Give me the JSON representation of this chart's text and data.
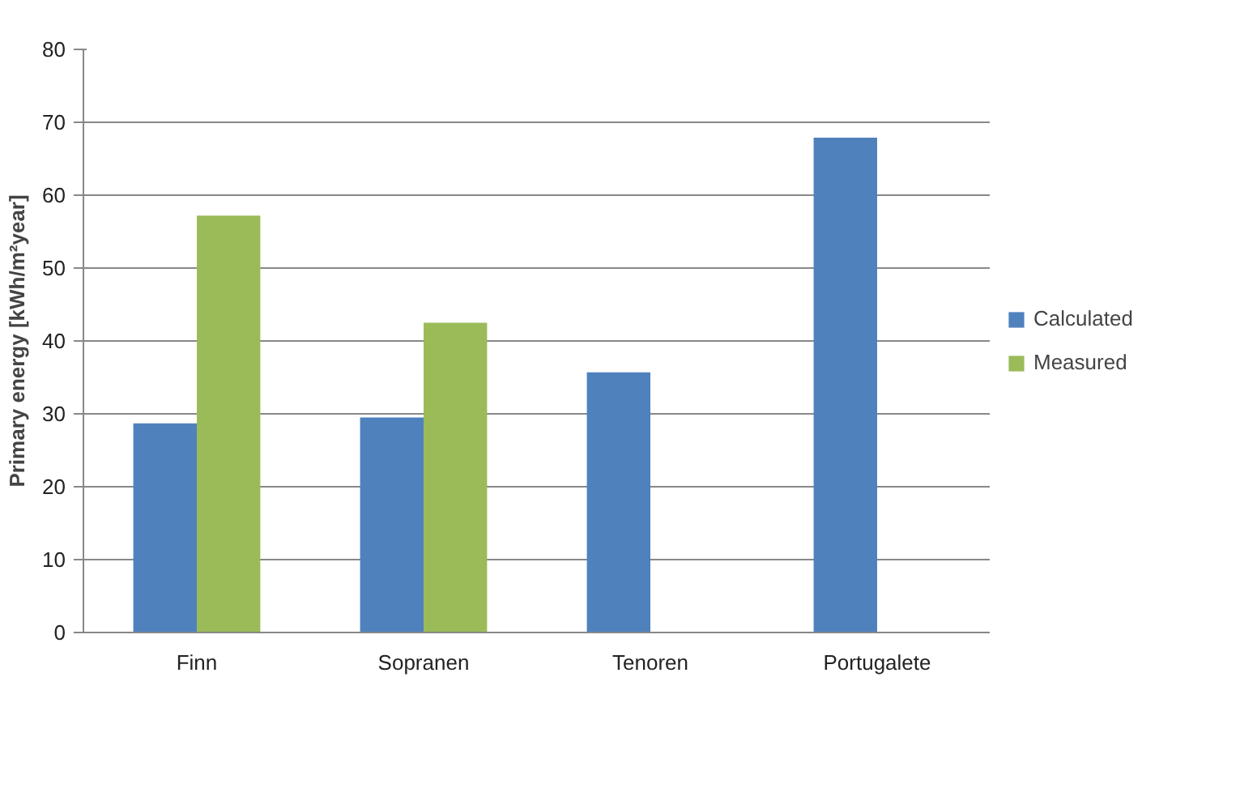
{
  "chart_data": {
    "type": "bar",
    "ylabel": "Primary energy [kWh/m²year]",
    "categories": [
      "Finn",
      "Sopranen",
      "Tenoren",
      "Portugalete"
    ],
    "series": [
      {
        "name": "Calculated",
        "color": "#4f81bd",
        "values": [
          28.7,
          29.5,
          35.7,
          67.9
        ]
      },
      {
        "name": "Measured",
        "color": "#9bbb59",
        "values": [
          57.2,
          42.5,
          null,
          null
        ]
      }
    ],
    "ylim": [
      0,
      80
    ],
    "yticks": [
      0,
      10,
      20,
      30,
      40,
      50,
      60,
      70,
      80
    ],
    "grid": "y",
    "legend": "right"
  }
}
